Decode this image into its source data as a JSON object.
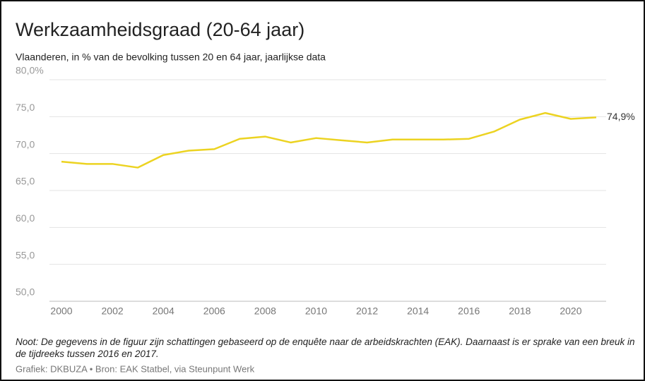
{
  "chart_data": {
    "type": "line",
    "title": "Werkzaamheidsgraad (20-64 jaar)",
    "subtitle": "Vlaanderen, in % van de bevolking tussen 20 en 64 jaar, jaarlijkse data",
    "note": "Noot: De gegevens in de figuur zijn schattingen gebaseerd op de enquête naar de arbeidskrachten (EAK). Daarnaast is er sprake van een breuk in de tijdreeks tussen 2016 en 2017.",
    "source": "Grafiek: DKBUZA • Bron: EAK Statbel, via Steunpunt Werk",
    "x": [
      2000,
      2001,
      2002,
      2003,
      2004,
      2005,
      2006,
      2007,
      2008,
      2009,
      2010,
      2011,
      2012,
      2013,
      2014,
      2015,
      2016,
      2017,
      2018,
      2019,
      2020,
      2021
    ],
    "series": [
      {
        "name": "Werkzaamheidsgraad",
        "color": "#ecd321",
        "values": [
          68.9,
          68.6,
          68.6,
          68.1,
          69.8,
          70.4,
          70.6,
          72.0,
          72.3,
          71.5,
          72.1,
          71.8,
          71.5,
          71.9,
          71.9,
          71.9,
          72.0,
          73.0,
          74.6,
          75.5,
          74.7,
          74.9
        ],
        "value_labels": [
          null,
          null,
          null,
          null,
          null,
          null,
          null,
          null,
          null,
          null,
          null,
          null,
          null,
          null,
          null,
          null,
          null,
          null,
          null,
          null,
          null,
          "74,9%"
        ]
      }
    ],
    "xlim": [
      2000,
      2021
    ],
    "xticks": [
      2000,
      2002,
      2004,
      2006,
      2008,
      2010,
      2012,
      2014,
      2016,
      2018,
      2020
    ],
    "ylim": [
      50,
      80
    ],
    "yticks": [
      {
        "value": 50,
        "label": "50,0"
      },
      {
        "value": 55,
        "label": "55,0"
      },
      {
        "value": 60,
        "label": "60,0"
      },
      {
        "value": 65,
        "label": "65,0"
      },
      {
        "value": 70,
        "label": "70,0"
      },
      {
        "value": 75,
        "label": "75,0"
      },
      {
        "value": 80,
        "label": "80,0%"
      }
    ],
    "grid": true
  }
}
